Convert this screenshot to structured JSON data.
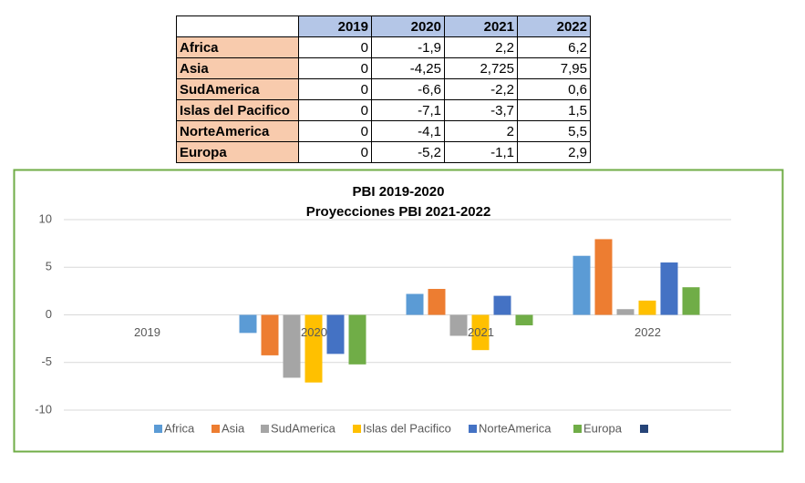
{
  "table": {
    "columns": [
      "2019",
      "2020",
      "2021",
      "2022"
    ],
    "rows": [
      {
        "label": "Africa",
        "cells": [
          "0",
          "-1,9",
          "2,2",
          "6,2"
        ]
      },
      {
        "label": "Asia",
        "cells": [
          "0",
          "-4,25",
          "2,725",
          "7,95"
        ]
      },
      {
        "label": "SudAmerica",
        "cells": [
          "0",
          "-6,6",
          "-2,2",
          "0,6"
        ]
      },
      {
        "label": "Islas del Pacifico",
        "cells": [
          "0",
          "-7,1",
          "-3,7",
          "1,5"
        ]
      },
      {
        "label": "NorteAmerica",
        "cells": [
          "0",
          "-4,1",
          "2",
          "5,5"
        ]
      },
      {
        "label": "Europa",
        "cells": [
          "0",
          "-5,2",
          "-1,1",
          "2,9"
        ]
      }
    ]
  },
  "chart_data": {
    "type": "bar",
    "title": "PBI 2019-2020",
    "subtitle": "Proyecciones PBI 2021-2022",
    "categories": [
      "2019",
      "2020",
      "2021",
      "2022"
    ],
    "series": [
      {
        "name": "Africa",
        "color": "#5b9bd5",
        "values": [
          0,
          -1.9,
          2.2,
          6.2
        ]
      },
      {
        "name": "Asia",
        "color": "#ed7d31",
        "values": [
          0,
          -4.25,
          2.725,
          7.95
        ]
      },
      {
        "name": "SudAmerica",
        "color": "#a5a5a5",
        "values": [
          0,
          -6.6,
          -2.2,
          0.6
        ]
      },
      {
        "name": "Islas del Pacifico",
        "color": "#ffc000",
        "values": [
          0,
          -7.1,
          -3.7,
          1.5
        ]
      },
      {
        "name": "NorteAmerica",
        "color": "#4472c4",
        "values": [
          0,
          -4.1,
          2,
          5.5
        ]
      },
      {
        "name": "Europa",
        "color": "#70ad47",
        "values": [
          0,
          -5.2,
          -1.1,
          2.9
        ]
      }
    ],
    "ylim": [
      -10,
      10
    ],
    "yticks": [
      10,
      5,
      0,
      -5,
      -10
    ],
    "grid": true,
    "legend": "bottom"
  }
}
